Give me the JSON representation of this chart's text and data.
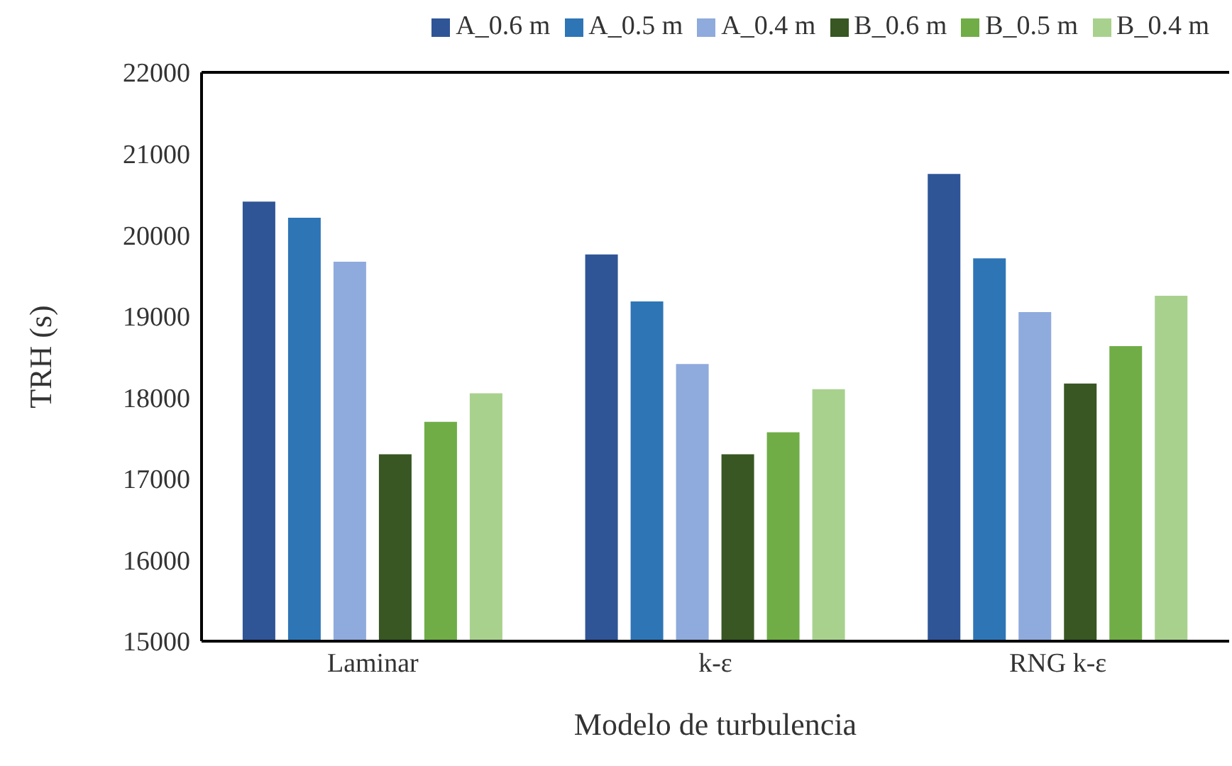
{
  "chart_data": {
    "type": "bar",
    "xlabel": "Modelo de turbulencia",
    "ylabel": "TRH (s)",
    "categories": [
      "Laminar",
      "k-ε",
      "RNG k-ε"
    ],
    "series": [
      {
        "name": "A_0.6 m",
        "color": "#2f5597",
        "values": [
          20410,
          19760,
          20750
        ]
      },
      {
        "name": "A_0.5 m",
        "color": "#2e75b6",
        "values": [
          20210,
          19180,
          19710
        ]
      },
      {
        "name": "A_0.4 m",
        "color": "#8faadc",
        "values": [
          19670,
          18410,
          19050
        ]
      },
      {
        "name": "B_0.6 m",
        "color": "#385723",
        "values": [
          17300,
          17300,
          18170
        ]
      },
      {
        "name": "B_0.5 m",
        "color": "#70ad47",
        "values": [
          17700,
          17570,
          18630
        ]
      },
      {
        "name": "B_0.4 m",
        "color": "#a9d18e",
        "values": [
          18050,
          18100,
          19250
        ]
      }
    ],
    "ylim": [
      15000,
      22000
    ],
    "yticks": [
      15000,
      16000,
      17000,
      18000,
      19000,
      20000,
      21000,
      22000
    ],
    "grid": false,
    "legend": "top"
  }
}
